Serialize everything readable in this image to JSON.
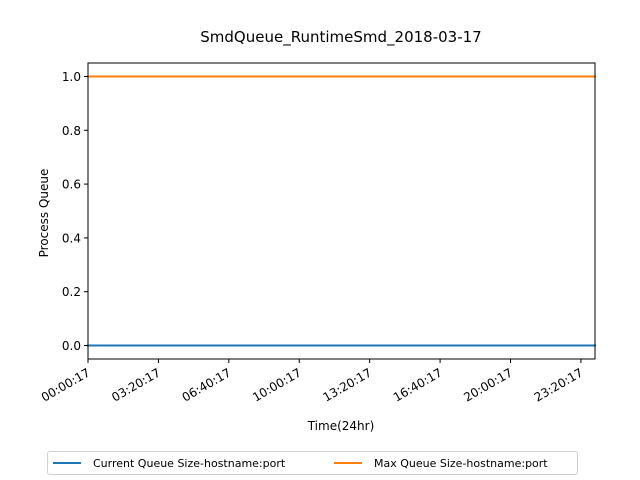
{
  "chart_data": {
    "type": "line",
    "title": "SmdQueue_RuntimeSmd_2018-03-17",
    "xlabel": "Time(24hr)",
    "ylabel": "Process Queue",
    "x": [
      "00:00:17",
      "03:20:17",
      "06:40:17",
      "10:00:17",
      "13:20:17",
      "16:40:17",
      "20:00:17",
      "23:20:17"
    ],
    "xticks": [
      "00:00:17",
      "03:20:17",
      "06:40:17",
      "10:00:17",
      "13:20:17",
      "16:40:17",
      "20:00:17",
      "23:20:17"
    ],
    "xlim": [
      "00:00:17",
      "24:00:17"
    ],
    "ylim": [
      -0.05,
      1.05
    ],
    "yticks": [
      "0.0",
      "0.2",
      "0.4",
      "0.6",
      "0.8",
      "1.0"
    ],
    "grid": false,
    "legend_position": "bottom-center",
    "series": [
      {
        "name": "Current Queue Size-hostname:port",
        "color": "#1f77b4",
        "values": [
          0,
          0,
          0,
          0,
          0,
          0,
          0,
          0
        ]
      },
      {
        "name": "Max Queue Size-hostname:port",
        "color": "#ff7f0e",
        "values": [
          1,
          1,
          1,
          1,
          1,
          1,
          1,
          1
        ]
      }
    ]
  }
}
